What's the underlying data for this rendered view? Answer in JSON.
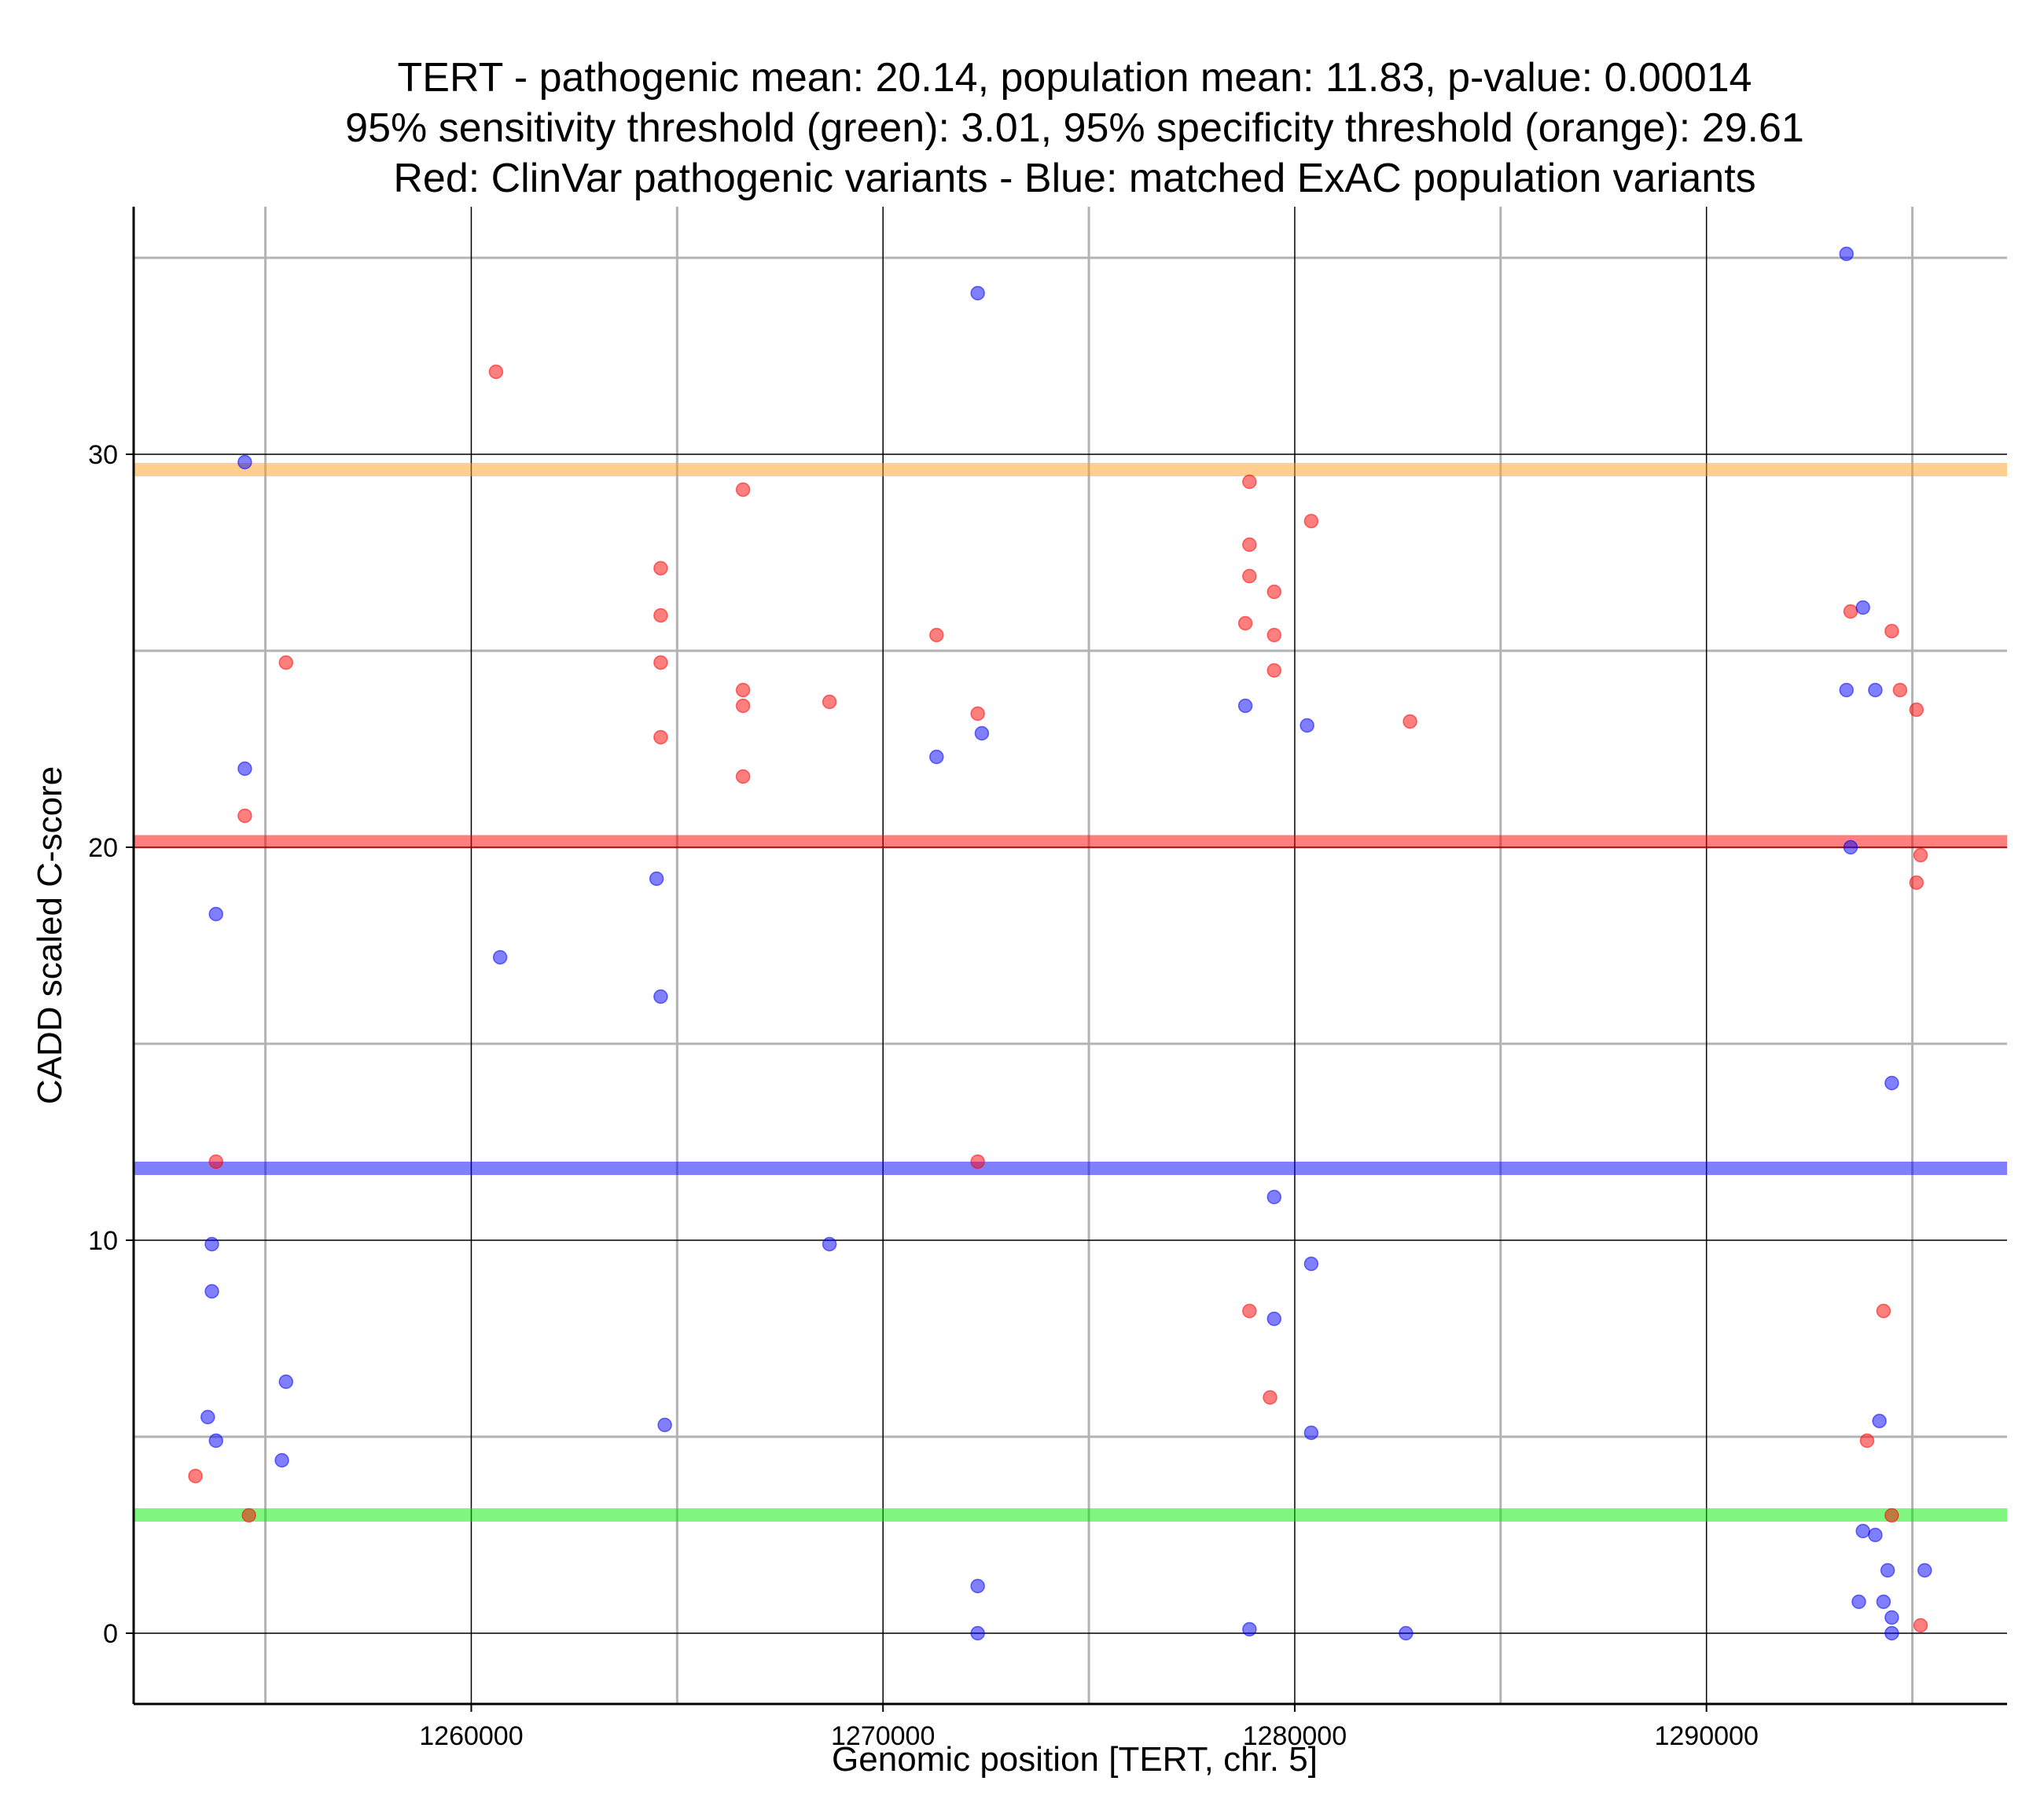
{
  "chart_data": {
    "type": "scatter",
    "title_lines": [
      "TERT - pathogenic mean: 20.14, population mean: 11.83, p-value: 0.00014",
      "95% sensitivity threshold (green): 3.01, 95% specificity threshold (orange): 29.61",
      "Red: ClinVar pathogenic variants - Blue: matched ExAC population variants"
    ],
    "xlabel": "Genomic position [TERT, chr. 5]",
    "ylabel": "CADD scaled C-score",
    "xlim": [
      1251800,
      1297300
    ],
    "ylim": [
      -1.8,
      36.3
    ],
    "x_ticks": [
      1260000,
      1270000,
      1280000,
      1290000
    ],
    "x_tick_labels": [
      "1260000",
      "1270000",
      "1280000",
      "1290000"
    ],
    "x_minor_grid": [
      1255000,
      1265000,
      1275000,
      1285000,
      1295000
    ],
    "y_ticks": [
      0,
      10,
      20,
      30
    ],
    "y_tick_labels": [
      "0",
      "10",
      "20",
      "30"
    ],
    "y_minor_grid": [
      5,
      15,
      25,
      35
    ],
    "grid": true,
    "colors": {
      "pathogenic": "#ff0000",
      "population": "#0000ff",
      "sensitivity": "#00ee00",
      "specificity": "#ffa020"
    },
    "thresholds": [
      {
        "name": "pathogenic mean",
        "value": 20.14,
        "color": "#ff0000"
      },
      {
        "name": "population mean",
        "value": 11.83,
        "color": "#0000ff"
      },
      {
        "name": "95% sensitivity threshold",
        "value": 3.01,
        "color": "#00ee00"
      },
      {
        "name": "95% specificity threshold",
        "value": 29.61,
        "color": "#ffa020"
      }
    ],
    "series": [
      {
        "name": "ClinVar pathogenic variants",
        "color": "#ff0000",
        "points": [
          [
            1260600,
            32.1
          ],
          [
            1254500,
            20.8
          ],
          [
            1255500,
            24.7
          ],
          [
            1253300,
            4.0
          ],
          [
            1254600,
            3.0
          ],
          [
            1253800,
            12.0
          ],
          [
            1264600,
            27.1
          ],
          [
            1264600,
            25.9
          ],
          [
            1264600,
            24.7
          ],
          [
            1264600,
            22.8
          ],
          [
            1266600,
            29.1
          ],
          [
            1266600,
            24.0
          ],
          [
            1266600,
            23.6
          ],
          [
            1266600,
            21.8
          ],
          [
            1268700,
            23.7
          ],
          [
            1271300,
            25.4
          ],
          [
            1272300,
            23.4
          ],
          [
            1272300,
            12.0
          ],
          [
            1278900,
            29.3
          ],
          [
            1278900,
            27.7
          ],
          [
            1278900,
            26.9
          ],
          [
            1278800,
            25.7
          ],
          [
            1279500,
            26.5
          ],
          [
            1279500,
            25.4
          ],
          [
            1279500,
            24.5
          ],
          [
            1280400,
            28.3
          ],
          [
            1282800,
            23.2
          ],
          [
            1278900,
            8.2
          ],
          [
            1279400,
            6.0
          ],
          [
            1293500,
            26.0
          ],
          [
            1294500,
            25.5
          ],
          [
            1294700,
            24.0
          ],
          [
            1295100,
            23.5
          ],
          [
            1295200,
            19.8
          ],
          [
            1295100,
            19.1
          ],
          [
            1294300,
            8.2
          ],
          [
            1293900,
            4.9
          ],
          [
            1294500,
            3.0
          ],
          [
            1295200,
            0.2
          ]
        ]
      },
      {
        "name": "matched ExAC population variants",
        "color": "#0000ff",
        "points": [
          [
            1254500,
            29.8
          ],
          [
            1254500,
            22.0
          ],
          [
            1253800,
            18.3
          ],
          [
            1253700,
            9.9
          ],
          [
            1253700,
            8.7
          ],
          [
            1253600,
            5.5
          ],
          [
            1253800,
            4.9
          ],
          [
            1255500,
            6.4
          ],
          [
            1255400,
            4.4
          ],
          [
            1260700,
            17.2
          ],
          [
            1264500,
            19.2
          ],
          [
            1264600,
            16.2
          ],
          [
            1264700,
            5.3
          ],
          [
            1268700,
            9.9
          ],
          [
            1271300,
            22.3
          ],
          [
            1272300,
            34.1
          ],
          [
            1272400,
            22.9
          ],
          [
            1272300,
            1.2
          ],
          [
            1272300,
            0.0
          ],
          [
            1278800,
            23.6
          ],
          [
            1280300,
            23.1
          ],
          [
            1279500,
            11.1
          ],
          [
            1279500,
            8.0
          ],
          [
            1280400,
            9.4
          ],
          [
            1280400,
            5.1
          ],
          [
            1278900,
            0.1
          ],
          [
            1282700,
            0.0
          ],
          [
            1293400,
            35.1
          ],
          [
            1293400,
            24.0
          ],
          [
            1293800,
            26.1
          ],
          [
            1294100,
            24.0
          ],
          [
            1293500,
            20.0
          ],
          [
            1294500,
            14.0
          ],
          [
            1294200,
            5.4
          ],
          [
            1293800,
            2.6
          ],
          [
            1294100,
            2.5
          ],
          [
            1294400,
            1.6
          ],
          [
            1295300,
            1.6
          ],
          [
            1293700,
            0.8
          ],
          [
            1294300,
            0.8
          ],
          [
            1294500,
            0.4
          ],
          [
            1294500,
            0.0
          ]
        ]
      }
    ]
  }
}
